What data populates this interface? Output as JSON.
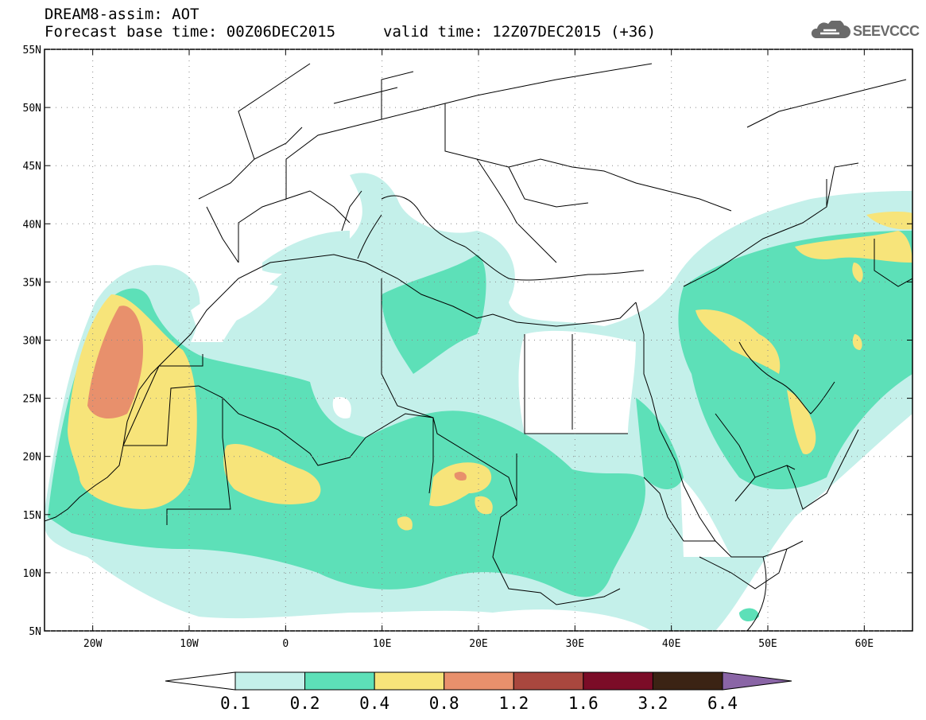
{
  "header": {
    "model_title": "DREAM8-assim: AOT",
    "forecast_base": "Forecast base time: 00Z06DEC2015",
    "valid_time": "valid time: 12Z07DEC2015 (+36)",
    "logo_text": "SEEVCCC",
    "logo_icon": "cloud-icon"
  },
  "map": {
    "lon_range": [
      -25,
      65
    ],
    "lat_range": [
      5,
      55
    ],
    "lon_ticks": [
      {
        "lon": -20,
        "label": "20W"
      },
      {
        "lon": -10,
        "label": "10W"
      },
      {
        "lon": 0,
        "label": "0"
      },
      {
        "lon": 10,
        "label": "10E"
      },
      {
        "lon": 20,
        "label": "20E"
      },
      {
        "lon": 30,
        "label": "30E"
      },
      {
        "lon": 40,
        "label": "40E"
      },
      {
        "lon": 50,
        "label": "50E"
      },
      {
        "lon": 60,
        "label": "60E"
      }
    ],
    "lat_ticks": [
      {
        "lat": 55,
        "label": "55N"
      },
      {
        "lat": 50,
        "label": "50N"
      },
      {
        "lat": 45,
        "label": "45N"
      },
      {
        "lat": 40,
        "label": "40N"
      },
      {
        "lat": 35,
        "label": "35N"
      },
      {
        "lat": 30,
        "label": "30N"
      },
      {
        "lat": 25,
        "label": "25N"
      },
      {
        "lat": 20,
        "label": "20N"
      },
      {
        "lat": 15,
        "label": "15N"
      },
      {
        "lat": 10,
        "label": "10N"
      },
      {
        "lat": 5,
        "label": "5N"
      }
    ],
    "grid": "dotted"
  },
  "colorbar": {
    "labels": [
      "0.1",
      "0.2",
      "0.4",
      "0.8",
      "1.2",
      "1.6",
      "3.2",
      "6.4"
    ],
    "colors": [
      "#ffffff",
      "#c4f0ea",
      "#5de0b8",
      "#f7e47a",
      "#e8906c",
      "#a9473e",
      "#7b0c27",
      "#3b2314",
      "#8a65a6"
    ]
  }
}
